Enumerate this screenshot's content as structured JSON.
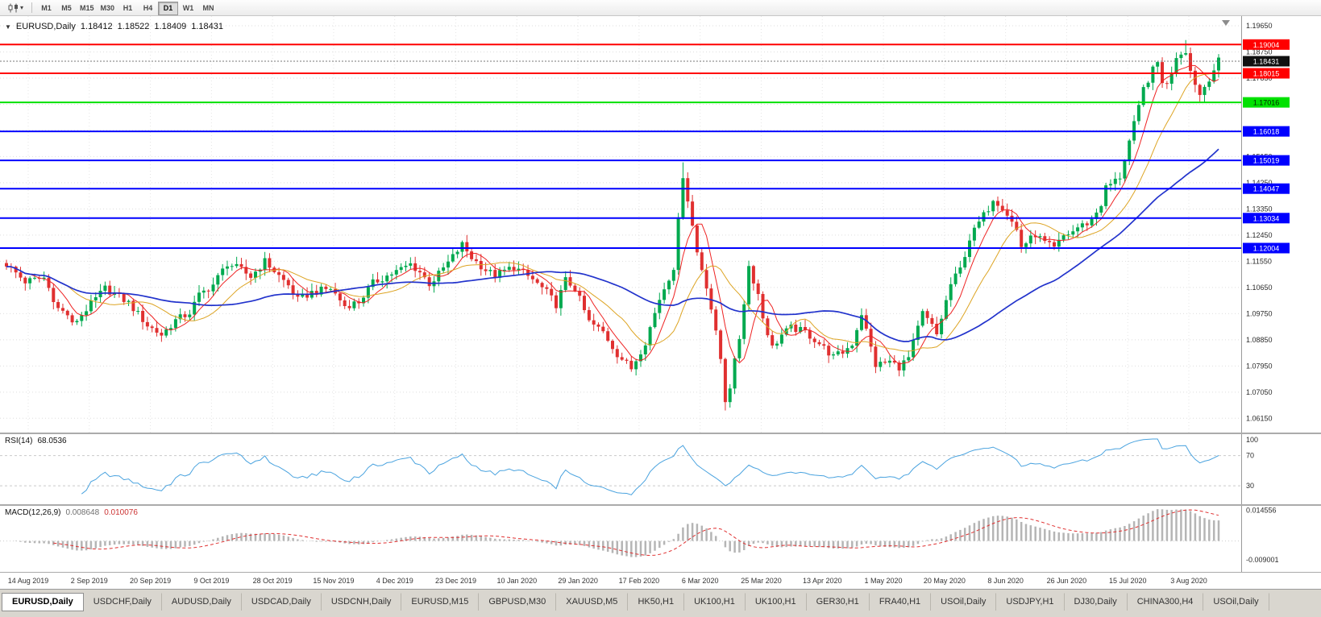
{
  "toolbar": {
    "chart_type_icon": "candlestick-chart-icon",
    "dropdown_icon": "caret-down-icon",
    "timeframes": [
      "M1",
      "M5",
      "M15",
      "M30",
      "H1",
      "H4",
      "D1",
      "W1",
      "MN"
    ],
    "active_timeframe": "D1"
  },
  "chart_data": {
    "type": "candlestick",
    "symbol": "EURUSD,Daily",
    "title_ohlc": [
      "1.18412",
      "1.18522",
      "1.18409",
      "1.18431"
    ],
    "current_price": {
      "value": 1.18431,
      "label": "1.18431",
      "bg": "#101010",
      "text": "#ffffff"
    },
    "y_range": [
      1.0566,
      1.1976
    ],
    "y_ticks": [
      "1.19650",
      "1.18750",
      "1.17850",
      "1.16950",
      "1.16050",
      "1.15150",
      "1.14250",
      "1.13350",
      "1.12450",
      "1.11550",
      "1.10650",
      "1.09750",
      "1.08850",
      "1.07950",
      "1.07050",
      "1.06150"
    ],
    "x_labels": [
      "14 Aug 2019",
      "2 Sep 2019",
      "20 Sep 2019",
      "9 Oct 2019",
      "28 Oct 2019",
      "15 Nov 2019",
      "4 Dec 2019",
      "23 Dec 2019",
      "10 Jan 2020",
      "29 Jan 2020",
      "17 Feb 2020",
      "6 Mar 2020",
      "25 Mar 2020",
      "13 Apr 2020",
      "1 May 2020",
      "20 May 2020",
      "8 Jun 2020",
      "26 Jun 2020",
      "15 Jul 2020",
      "3 Aug 2020"
    ],
    "levels": [
      {
        "price": 1.19004,
        "label": "1.19004",
        "color": "#ff0000",
        "label_text": "#ffffff",
        "width": 2
      },
      {
        "price": 1.18015,
        "label": "1.18015",
        "color": "#ff0000",
        "label_text": "#ffffff",
        "width": 2
      },
      {
        "price": 1.17016,
        "label": "1.17016",
        "color": "#00e100",
        "label_text": "#002200",
        "width": 2
      },
      {
        "price": 1.16018,
        "label": "1.16018",
        "color": "#0000ff",
        "label_text": "#ffffff",
        "width": 2
      },
      {
        "price": 1.15019,
        "label": "1.15019",
        "color": "#0000ff",
        "label_text": "#ffffff",
        "width": 2
      },
      {
        "price": 1.14047,
        "label": "1.14047",
        "color": "#0000ff",
        "label_text": "#ffffff",
        "width": 2
      },
      {
        "price": 1.13034,
        "label": "1.13034",
        "color": "#0000ff",
        "label_text": "#ffffff",
        "width": 2
      },
      {
        "price": 1.12004,
        "label": "1.12004",
        "color": "#0000ff",
        "label_text": "#ffffff",
        "width": 2
      }
    ],
    "moving_averages": [
      {
        "name": "ma-fast",
        "period": 6,
        "color": "#ee2222",
        "width": 1
      },
      {
        "name": "ma-medium",
        "period": 14,
        "color": "#dda423",
        "width": 1
      },
      {
        "name": "ma-slow",
        "period": 40,
        "color": "#2233cc",
        "width": 1.7
      }
    ],
    "candles": {
      "count": 259,
      "up_color": "#00a94f",
      "down_color": "#e03030",
      "anchors": [
        [
          0,
          1.1145
        ],
        [
          4,
          1.1085
        ],
        [
          8,
          1.1098
        ],
        [
          11,
          1.0992
        ],
        [
          13,
          1.0972
        ],
        [
          14,
          1.0936
        ],
        [
          21,
          1.1062
        ],
        [
          26,
          1.1012
        ],
        [
          30,
          1.0935
        ],
        [
          33,
          1.0902
        ],
        [
          36,
          1.0952
        ],
        [
          39,
          1.0978
        ],
        [
          41,
          1.1038
        ],
        [
          44,
          1.1075
        ],
        [
          47,
          1.1148
        ],
        [
          50,
          1.1125
        ],
        [
          52,
          1.1102
        ],
        [
          55,
          1.1155
        ],
        [
          58,
          1.1105
        ],
        [
          60,
          1.1072
        ],
        [
          62,
          1.1022
        ],
        [
          65,
          1.1048
        ],
        [
          69,
          1.1062
        ],
        [
          72,
          1.1002
        ],
        [
          75,
          1.1015
        ],
        [
          78,
          1.108
        ],
        [
          81,
          1.1105
        ],
        [
          84,
          1.1128
        ],
        [
          86,
          1.1145
        ],
        [
          88,
          1.1118
        ],
        [
          90,
          1.1078
        ],
        [
          91,
          1.1092
        ],
        [
          94,
          1.115
        ],
        [
          97,
          1.1212
        ],
        [
          99,
          1.1168
        ],
        [
          102,
          1.1125
        ],
        [
          104,
          1.1106
        ],
        [
          106,
          1.1122
        ],
        [
          108,
          1.1136
        ],
        [
          112,
          1.1092
        ],
        [
          115,
          1.1048
        ],
        [
          117,
          1.1006
        ],
        [
          119,
          1.109
        ],
        [
          121,
          1.1062
        ],
        [
          124,
          1.0946
        ],
        [
          127,
          1.0912
        ],
        [
          130,
          1.0836
        ],
        [
          133,
          1.0786
        ],
        [
          136,
          1.0878
        ],
        [
          139,
          1.1026
        ],
        [
          142,
          1.1136
        ],
        [
          144,
          1.1452
        ],
        [
          145,
          1.1368
        ],
        [
          147,
          1.1186
        ],
        [
          149,
          1.1072
        ],
        [
          150,
          1.0992
        ],
        [
          152,
          1.082
        ],
        [
          153,
          1.0678
        ],
        [
          154,
          1.0726
        ],
        [
          156,
          1.0892
        ],
        [
          158,
          1.1138
        ],
        [
          160,
          1.1042
        ],
        [
          161,
          1.0962
        ],
        [
          163,
          1.0858
        ],
        [
          165,
          1.0902
        ],
        [
          167,
          1.0926
        ],
        [
          170,
          1.0912
        ],
        [
          173,
          1.0872
        ],
        [
          176,
          1.0826
        ],
        [
          178,
          1.0842
        ],
        [
          180,
          1.0872
        ],
        [
          182,
          1.0976
        ],
        [
          185,
          1.0798
        ],
        [
          188,
          1.081
        ],
        [
          190,
          1.0792
        ],
        [
          192,
          1.0822
        ],
        [
          195,
          1.0976
        ],
        [
          197,
          1.0932
        ],
        [
          198,
          1.0902
        ],
        [
          201,
          1.1076
        ],
        [
          203,
          1.1128
        ],
        [
          205,
          1.1232
        ],
        [
          207,
          1.1288
        ],
        [
          209,
          1.1338
        ],
        [
          210,
          1.1372
        ],
        [
          212,
          1.1342
        ],
        [
          213,
          1.1318
        ],
        [
          215,
          1.1262
        ],
        [
          216,
          1.1206
        ],
        [
          218,
          1.1232
        ],
        [
          219,
          1.1248
        ],
        [
          221,
          1.1218
        ],
        [
          223,
          1.1198
        ],
        [
          225,
          1.1242
        ],
        [
          227,
          1.1258
        ],
        [
          228,
          1.1272
        ],
        [
          230,
          1.1286
        ],
        [
          231,
          1.1298
        ],
        [
          233,
          1.1352
        ],
        [
          234,
          1.1408
        ],
        [
          236,
          1.1432
        ],
        [
          237,
          1.1446
        ],
        [
          239,
          1.1568
        ],
        [
          241,
          1.1682
        ],
        [
          242,
          1.1748
        ],
        [
          244,
          1.1812
        ],
        [
          245,
          1.1838
        ],
        [
          246,
          1.1776
        ],
        [
          247,
          1.176
        ],
        [
          249,
          1.1862
        ],
        [
          251,
          1.1882
        ],
        [
          252,
          1.181
        ],
        [
          254,
          1.1728
        ],
        [
          256,
          1.1786
        ],
        [
          258,
          1.1843
        ]
      ],
      "pins": [
        {
          "i": 144,
          "high": 1.1495
        },
        {
          "i": 153,
          "low": 1.0642
        },
        {
          "i": 251,
          "high": 1.1916
        }
      ]
    },
    "indicators": {
      "rsi": {
        "label": "RSI(14)",
        "value": "68.0536",
        "period": 14,
        "color": "#4aa3df",
        "level_labels": [
          "100",
          "70",
          "30"
        ],
        "dashed_levels": [
          70,
          30
        ]
      },
      "macd": {
        "label": "MACD(12,26,9)",
        "values": [
          "0.008648",
          "0.010076"
        ],
        "fast": 12,
        "slow": 26,
        "signal": 9,
        "histogram_color": "#b5b5b5",
        "signal_color": "#e03030",
        "value_colors": [
          "#6f6f6f",
          "#cc3333"
        ],
        "y_ticks": [
          "0.014556",
          "-0.009001"
        ],
        "range": [
          -0.0135,
          0.0155
        ]
      }
    }
  },
  "tabs": [
    {
      "label": "EURUSD,Daily",
      "active": true
    },
    {
      "label": "USDCHF,Daily",
      "active": false
    },
    {
      "label": "AUDUSD,Daily",
      "active": false
    },
    {
      "label": "USDCAD,Daily",
      "active": false
    },
    {
      "label": "USDCNH,Daily",
      "active": false
    },
    {
      "label": "EURUSD,M15",
      "active": false
    },
    {
      "label": "GBPUSD,M30",
      "active": false
    },
    {
      "label": "XAUUSD,M5",
      "active": false
    },
    {
      "label": "HK50,H1",
      "active": false
    },
    {
      "label": "UK100,H1",
      "active": false
    },
    {
      "label": "UK100,H1",
      "active": false
    },
    {
      "label": "GER30,H1",
      "active": false
    },
    {
      "label": "FRA40,H1",
      "active": false
    },
    {
      "label": "USOil,Daily",
      "active": false
    },
    {
      "label": "USDJPY,H1",
      "active": false
    },
    {
      "label": "DJ30,Daily",
      "active": false
    },
    {
      "label": "CHINA300,H4",
      "active": false
    },
    {
      "label": "USOil,Daily",
      "active": false
    }
  ]
}
